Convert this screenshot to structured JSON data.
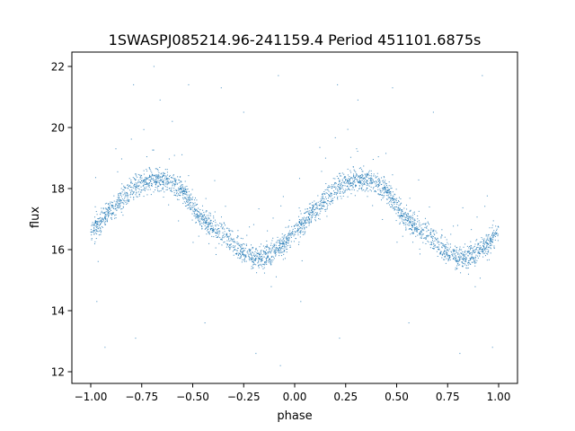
{
  "chart_data": {
    "type": "scatter",
    "title": "1SWASPJ085214.96-241159.4 Period 451101.6875s",
    "xlabel": "phase",
    "ylabel": "flux",
    "xlim": [
      -1.1,
      1.1
    ],
    "ylim": [
      11.65,
      22.5
    ],
    "xticks": [
      "−1.00",
      "−0.75",
      "−0.50",
      "−0.25",
      "0.00",
      "0.25",
      "0.50",
      "0.75",
      "1.00"
    ],
    "xtick_values": [
      -1.0,
      -0.75,
      -0.5,
      -0.25,
      0.0,
      0.25,
      0.5,
      0.75,
      1.0
    ],
    "yticks": [
      "12",
      "14",
      "16",
      "18",
      "20",
      "22"
    ],
    "ytick_values": [
      12,
      14,
      16,
      18,
      20,
      22
    ],
    "grid": false,
    "marker_color": "#1f77b4",
    "folded_light_curve": {
      "phase": [
        0.0,
        0.05,
        0.1,
        0.15,
        0.2,
        0.25,
        0.3,
        0.35,
        0.4,
        0.45,
        0.5,
        0.55,
        0.6,
        0.65,
        0.7,
        0.75,
        0.8,
        0.85,
        0.9,
        0.95,
        1.0
      ],
      "flux": [
        16.6,
        16.9,
        17.3,
        17.6,
        18.0,
        18.2,
        18.3,
        18.3,
        18.15,
        17.95,
        17.4,
        17.0,
        16.7,
        16.5,
        16.2,
        15.9,
        15.7,
        15.8,
        16.0,
        16.2,
        16.6
      ]
    },
    "outliers": [
      {
        "phase": -0.69,
        "flux": 22.0
      },
      {
        "phase": -0.79,
        "flux": 21.4
      },
      {
        "phase": -0.66,
        "flux": 20.9
      },
      {
        "phase": -0.52,
        "flux": 21.4
      },
      {
        "phase": -0.36,
        "flux": 21.3
      },
      {
        "phase": -0.08,
        "flux": 21.7
      },
      {
        "phase": 0.21,
        "flux": 21.4
      },
      {
        "phase": 0.31,
        "flux": 20.9
      },
      {
        "phase": 0.48,
        "flux": 21.3
      },
      {
        "phase": 0.92,
        "flux": 21.7
      },
      {
        "phase": -0.97,
        "flux": 14.3
      },
      {
        "phase": -0.93,
        "flux": 12.8
      },
      {
        "phase": -0.78,
        "flux": 13.1
      },
      {
        "phase": -0.44,
        "flux": 13.6
      },
      {
        "phase": -0.19,
        "flux": 12.6
      },
      {
        "phase": -0.07,
        "flux": 12.2
      },
      {
        "phase": 0.03,
        "flux": 14.3
      },
      {
        "phase": 0.22,
        "flux": 13.1
      },
      {
        "phase": 0.56,
        "flux": 13.6
      },
      {
        "phase": 0.81,
        "flux": 12.6
      },
      {
        "phase": 0.97,
        "flux": 12.8
      },
      {
        "phase": -0.25,
        "flux": 20.5
      },
      {
        "phase": 0.68,
        "flux": 20.5
      },
      {
        "phase": -0.6,
        "flux": 20.2
      }
    ]
  }
}
